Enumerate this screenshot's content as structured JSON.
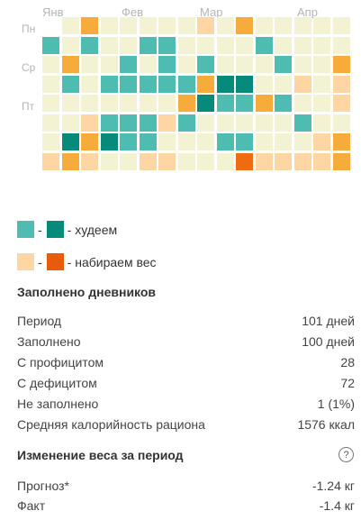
{
  "calendar": {
    "months": [
      "Янв",
      "Фев",
      "Мар",
      "Апр"
    ],
    "weekdays": [
      "Пн",
      "Ср",
      "Пт"
    ],
    "palette": {
      "empty": "#f3f3d4",
      "lose_light": "#4ebcb0",
      "lose_dark": "#068b7a",
      "gain_light": "#fdd6a4",
      "gain_mid": "#f7ab3a",
      "gain_dark": "#ee6c0f"
    },
    "grid": [
      [
        null,
        "empty",
        "gain_mid",
        "empty",
        "empty",
        "empty",
        "empty",
        "empty",
        "gain_light",
        "empty",
        "gain_mid",
        "empty",
        "empty",
        "empty",
        "empty",
        "empty"
      ],
      [
        "lose_light",
        "empty",
        "lose_light",
        "empty",
        "empty",
        "lose_light",
        "lose_light",
        "empty",
        "empty",
        "empty",
        "empty",
        "lose_light",
        "empty",
        "empty",
        "empty",
        "empty"
      ],
      [
        "empty",
        "gain_mid",
        "empty",
        "empty",
        "lose_light",
        "empty",
        "lose_light",
        "empty",
        "lose_light",
        "empty",
        "empty",
        "empty",
        "lose_light",
        "empty",
        "empty",
        "gain_mid"
      ],
      [
        "empty",
        "lose_light",
        "empty",
        "lose_light",
        "lose_light",
        "lose_light",
        "lose_light",
        "lose_light",
        "gain_mid",
        "lose_dark",
        "lose_dark",
        "empty",
        "empty",
        "gain_light",
        "empty",
        "gain_light"
      ],
      [
        "empty",
        "empty",
        "empty",
        "empty",
        "empty",
        "empty",
        "empty",
        "gain_mid",
        "lose_dark",
        "lose_light",
        "lose_light",
        "gain_mid",
        "lose_light",
        "empty",
        "empty",
        "gain_light"
      ],
      [
        "empty",
        "empty",
        "gain_light",
        "lose_light",
        "lose_light",
        "lose_light",
        "gain_light",
        "lose_light",
        "empty",
        "empty",
        "empty",
        "empty",
        "empty",
        "lose_light",
        "empty",
        "empty"
      ],
      [
        "empty",
        "lose_dark",
        "gain_mid",
        "lose_dark",
        "lose_light",
        "lose_light",
        "empty",
        "empty",
        "empty",
        "lose_light",
        "lose_light",
        "empty",
        "empty",
        "empty",
        "gain_light",
        "gain_mid"
      ],
      [
        "gain_light",
        "gain_mid",
        "gain_light",
        "empty",
        "empty",
        "gain_light",
        "gain_light",
        "empty",
        "empty",
        "empty",
        "gain_dark",
        "gain_light",
        "gain_light",
        "gain_light",
        "gain_light",
        "gain_mid"
      ]
    ]
  },
  "legend": {
    "lose_label": "- худеем",
    "gain_label": "- набираем вес",
    "dash": "-"
  },
  "diaries": {
    "title": "Заполнено дневников",
    "rows": [
      {
        "label": "Период",
        "value": "101 дней"
      },
      {
        "label": "Заполнено",
        "value": "100 дней"
      },
      {
        "label": "С профицитом",
        "value": "28"
      },
      {
        "label": "С дефицитом",
        "value": "72"
      },
      {
        "label": "Не заполнено",
        "value": "1 (1%)"
      },
      {
        "label": "Средняя калорийность рациона",
        "value": "1576 ккал"
      }
    ]
  },
  "weight": {
    "title": "Изменение веса за период",
    "help_icon_glyph": "?",
    "rows": [
      {
        "label": "Прогноз*",
        "value": "-1.24 кг"
      },
      {
        "label": "Факт",
        "value": "-1.4 кг"
      }
    ]
  }
}
